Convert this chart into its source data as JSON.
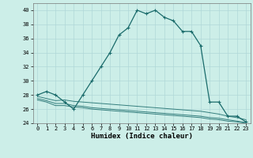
{
  "xlabel": "Humidex (Indice chaleur)",
  "bg_color": "#cceee8",
  "grid_color": "#b0d8d8",
  "line_color": "#1a6b6b",
  "xlim": [
    -0.5,
    23.5
  ],
  "ylim": [
    24,
    41
  ],
  "yticks": [
    24,
    26,
    28,
    30,
    32,
    34,
    36,
    38,
    40
  ],
  "xticks": [
    0,
    1,
    2,
    3,
    4,
    5,
    6,
    7,
    8,
    9,
    10,
    11,
    12,
    13,
    14,
    15,
    16,
    17,
    18,
    19,
    20,
    21,
    22,
    23
  ],
  "main_line": {
    "x": [
      0,
      1,
      2,
      3,
      4,
      5,
      6,
      7,
      8,
      9,
      10,
      11,
      12,
      13,
      14,
      15,
      16,
      17,
      18,
      19,
      20,
      21,
      22,
      23
    ],
    "y": [
      28,
      28.5,
      28,
      27,
      26,
      28,
      30,
      32,
      34,
      36.5,
      37.5,
      40,
      39.5,
      40,
      39,
      38.5,
      37,
      37,
      35,
      27,
      27,
      25,
      25,
      24.2
    ]
  },
  "flat_lines": [
    {
      "x": [
        0,
        1,
        2,
        3,
        4,
        5,
        6,
        7,
        8,
        9,
        10,
        11,
        12,
        13,
        14,
        15,
        16,
        17,
        18,
        19,
        20,
        21,
        22,
        23
      ],
      "y": [
        27.8,
        27.5,
        27.2,
        27.3,
        27.1,
        27.0,
        26.9,
        26.8,
        26.7,
        26.6,
        26.5,
        26.4,
        26.3,
        26.2,
        26.1,
        26.0,
        25.9,
        25.8,
        25.7,
        25.5,
        25.3,
        25.0,
        24.8,
        24.5
      ]
    },
    {
      "x": [
        0,
        1,
        2,
        3,
        4,
        5,
        6,
        7,
        8,
        9,
        10,
        11,
        12,
        13,
        14,
        15,
        16,
        17,
        18,
        19,
        20,
        21,
        22,
        23
      ],
      "y": [
        27.5,
        27.2,
        26.8,
        26.8,
        26.5,
        26.4,
        26.2,
        26.1,
        26.0,
        25.9,
        25.8,
        25.7,
        25.6,
        25.5,
        25.4,
        25.3,
        25.2,
        25.1,
        25.0,
        24.8,
        24.7,
        24.5,
        24.3,
        24.1
      ]
    },
    {
      "x": [
        0,
        1,
        2,
        3,
        4,
        5,
        6,
        7,
        8,
        9,
        10,
        11,
        12,
        13,
        14,
        15,
        16,
        17,
        18,
        19,
        20,
        21,
        22,
        23
      ],
      "y": [
        27.3,
        27.0,
        26.5,
        26.5,
        26.3,
        26.2,
        26.0,
        25.9,
        25.8,
        25.7,
        25.6,
        25.5,
        25.4,
        25.3,
        25.2,
        25.1,
        25.0,
        24.9,
        24.8,
        24.6,
        24.5,
        24.3,
        24.2,
        24.0
      ]
    }
  ],
  "tick_fontsize": 5,
  "xlabel_fontsize": 6.5
}
